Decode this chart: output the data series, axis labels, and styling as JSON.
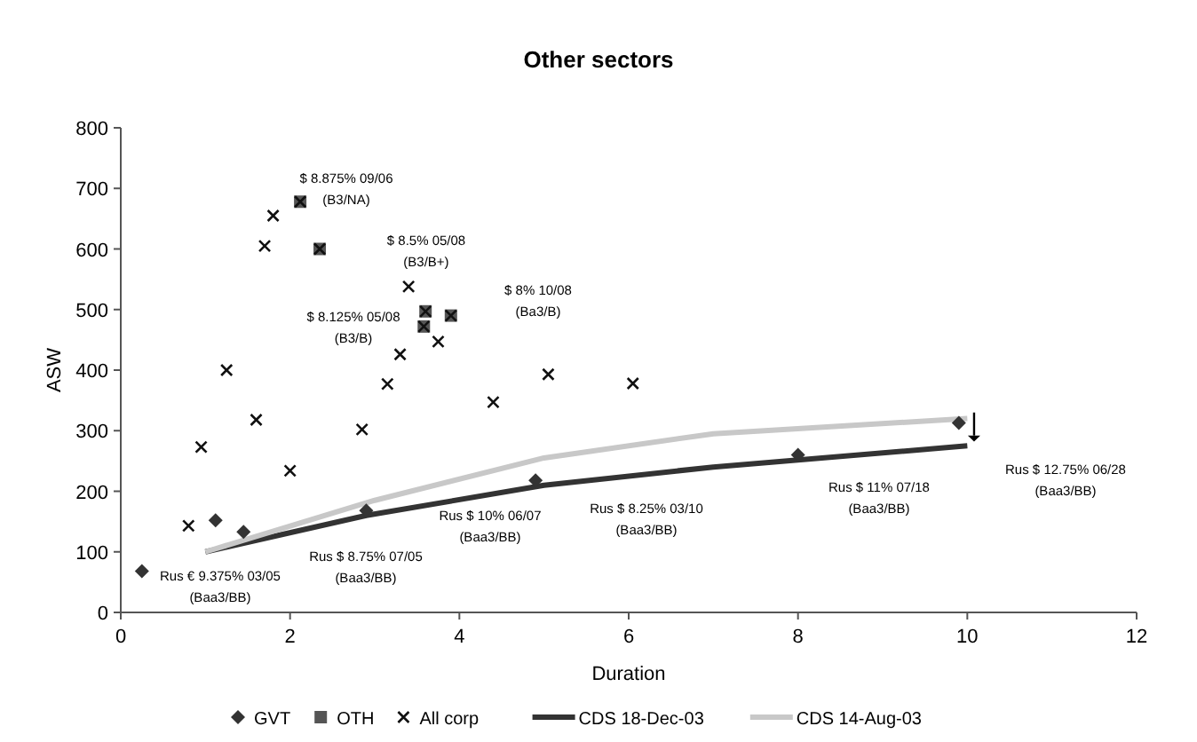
{
  "chart_data": {
    "type": "scatter",
    "title": "Other sectors",
    "xlabel": "Duration",
    "ylabel": "ASW",
    "xlim": [
      0,
      12
    ],
    "xticks": [
      0,
      2,
      4,
      6,
      8,
      10,
      12
    ],
    "ylim": [
      0,
      800
    ],
    "yticks": [
      0,
      100,
      200,
      300,
      400,
      500,
      600,
      700,
      800
    ],
    "grid": false,
    "legend": "bottom",
    "series": [
      {
        "name": "GVT",
        "marker": "diamond",
        "color": "#333333",
        "x": [
          0.25,
          1.12,
          1.45,
          2.9,
          4.9,
          8.0,
          9.9
        ],
        "values": [
          68,
          152,
          133,
          168,
          218,
          260,
          313
        ]
      },
      {
        "name": "OTH",
        "marker": "square",
        "color": "#555555",
        "x": [
          2.12,
          2.35,
          3.6,
          3.58,
          3.9
        ],
        "values": [
          678,
          600,
          497,
          472,
          490
        ]
      },
      {
        "name": "All corp",
        "marker": "cross",
        "color": "#111111",
        "x": [
          0.8,
          0.95,
          1.25,
          1.6,
          2.0,
          1.7,
          1.8,
          2.12,
          2.35,
          2.85,
          3.15,
          3.3,
          3.4,
          3.6,
          3.58,
          3.75,
          3.9,
          4.4,
          5.05,
          6.05
        ],
        "values": [
          143,
          273,
          400,
          318,
          234,
          605,
          655,
          678,
          600,
          302,
          377,
          426,
          538,
          497,
          472,
          447,
          490,
          347,
          393,
          378
        ]
      },
      {
        "name": "CDS 18-Dec-03",
        "type": "line",
        "marker": "none",
        "color": "#333333",
        "x": [
          1,
          2.9,
          5,
          7,
          10
        ],
        "values": [
          100,
          160,
          210,
          240,
          275
        ]
      },
      {
        "name": "CDS 14-Aug-03",
        "type": "line",
        "marker": "none",
        "color": "#c8c8c8",
        "x": [
          1,
          3,
          5,
          7,
          10
        ],
        "values": [
          100,
          185,
          255,
          295,
          320
        ]
      }
    ],
    "annotations": [
      "Rus € 9.375% 03/05\n(Baa3/BB)",
      "Rus $ 8.75% 07/05\n(Baa3/BB)",
      "Rus $ 10% 06/07\n(Baa3/BB)",
      "Rus $ 8.25% 03/10\n(Baa3/BB)",
      "Rus $ 11% 07/18\n(Baa3/BB)",
      "Rus $ 12.75% 06/28\n(Baa3/BB)",
      "$ 8.875% 09/06\n(B3/NA)",
      "$ 8.5% 05/08\n(B3/B+)",
      "$ 8.125% 05/08\n(B3/B)",
      "$ 8% 10/08\n(Ba3/B)"
    ]
  }
}
